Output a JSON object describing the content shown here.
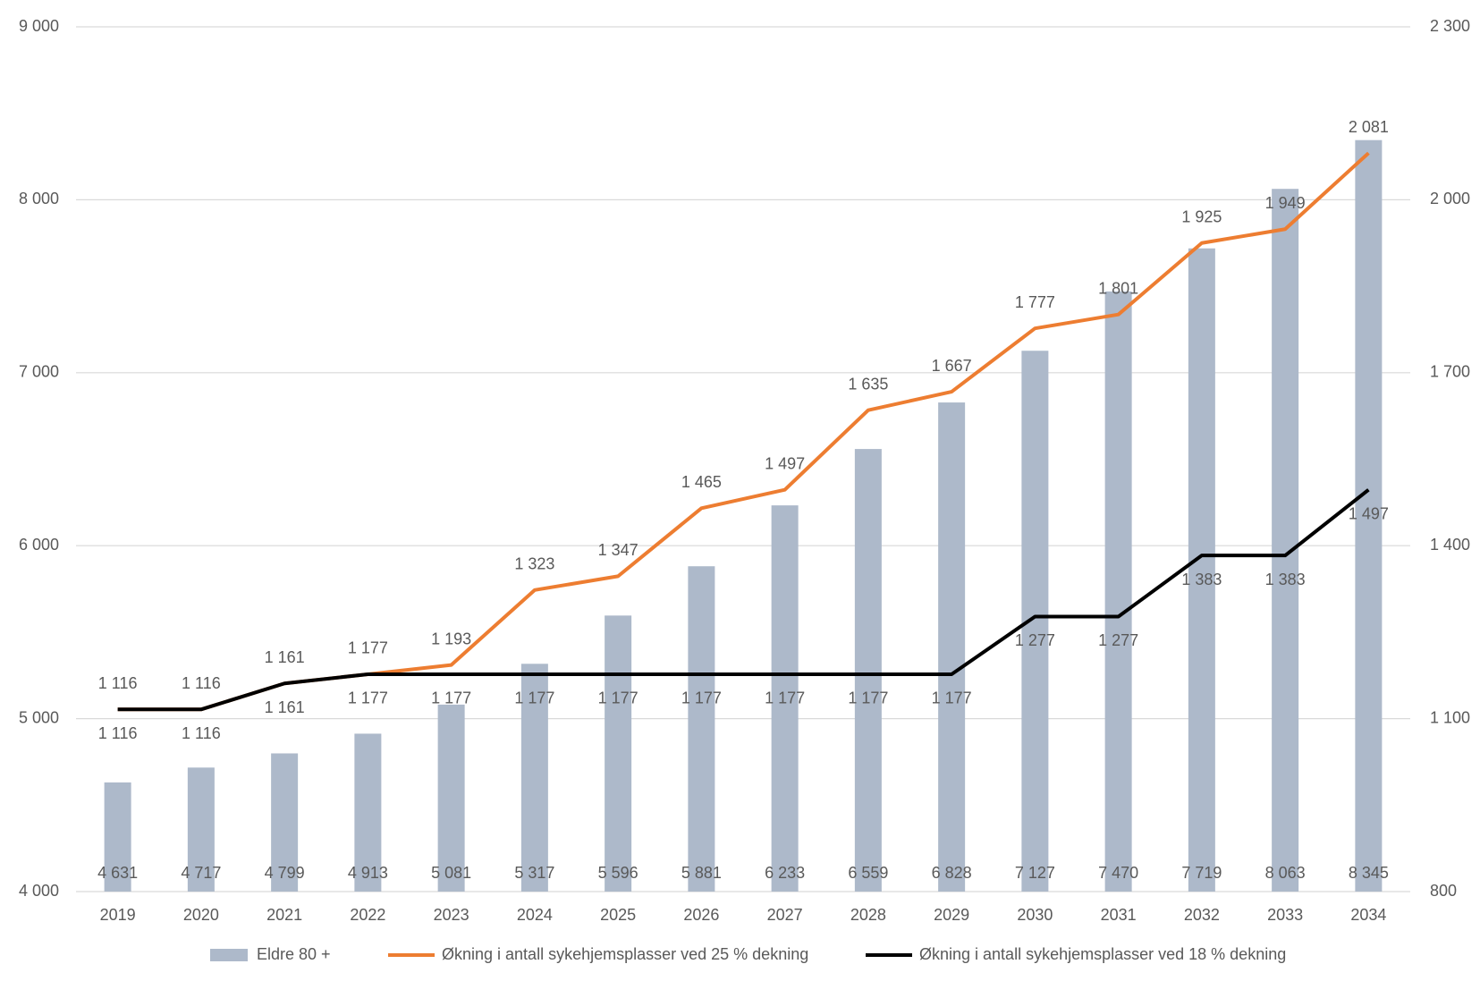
{
  "chart_data": {
    "type": "bar",
    "categories": [
      "2019",
      "2020",
      "2021",
      "2022",
      "2023",
      "2024",
      "2025",
      "2026",
      "2027",
      "2028",
      "2029",
      "2030",
      "2031",
      "2032",
      "2033",
      "2034"
    ],
    "series": [
      {
        "name": "Eldre 80 +",
        "type": "bar",
        "color": "#adb9ca",
        "axis": "y",
        "values": [
          4631,
          4717,
          4799,
          4913,
          5081,
          5317,
          5596,
          5881,
          6233,
          6559,
          6828,
          7127,
          7470,
          7719,
          8063,
          8345
        ],
        "value_labels": [
          "4 631",
          "4 717",
          "4 799",
          "4 913",
          "5 081",
          "5 317",
          "5 596",
          "5 881",
          "6 233",
          "6 559",
          "6 828",
          "7 127",
          "7 470",
          "7 719",
          "8 063",
          "8 345"
        ]
      },
      {
        "name": "Økning i antall sykehjemsplasser ved 25 % dekning",
        "type": "line",
        "color": "#ed7d31",
        "axis": "y2",
        "values": [
          1116,
          1116,
          1161,
          1177,
          1193,
          1323,
          1347,
          1465,
          1497,
          1635,
          1667,
          1777,
          1801,
          1925,
          1949,
          2081
        ],
        "value_labels": [
          "1 116",
          "1 116",
          "1 161",
          "1 177",
          "1 193",
          "1 323",
          "1 347",
          "1 465",
          "1 497",
          "1 635",
          "1 667",
          "1 777",
          "1 801",
          "1 925",
          "1 949",
          "2 081"
        ]
      },
      {
        "name": "Økning i antall sykehjemsplasser ved 18 % dekning",
        "type": "line",
        "color": "#000000",
        "axis": "y2",
        "values": [
          1116,
          1116,
          1161,
          1177,
          1177,
          1177,
          1177,
          1177,
          1177,
          1177,
          1177,
          1277,
          1277,
          1383,
          1383,
          1497
        ],
        "value_labels": [
          "1 116",
          "1 116",
          "1 161",
          "1 177",
          "1 177",
          "1 177",
          "1 177",
          "1 177",
          "1 177",
          "1 177",
          "1 177",
          "1 277",
          "1 277",
          "1 383",
          "1 383",
          "1 497"
        ]
      }
    ],
    "ylim": [
      4000,
      9000
    ],
    "yticks": [
      {
        "value": 4000,
        "label": "4 000"
      },
      {
        "value": 5000,
        "label": "5 000"
      },
      {
        "value": 6000,
        "label": "6 000"
      },
      {
        "value": 7000,
        "label": "7 000"
      },
      {
        "value": 8000,
        "label": "8 000"
      },
      {
        "value": 9000,
        "label": "9 000"
      }
    ],
    "y2lim": [
      800,
      2300
    ],
    "y2ticks": [
      800,
      {
        "value": 1100,
        "label": "1 100"
      },
      {
        "value": 1400,
        "label": "1 400"
      },
      {
        "value": 1700,
        "label": "1 700"
      },
      {
        "value": 2000,
        "label": "2 000"
      },
      {
        "value": 2300,
        "label": "2 300"
      }
    ],
    "grid": true,
    "legend": "bottom"
  }
}
